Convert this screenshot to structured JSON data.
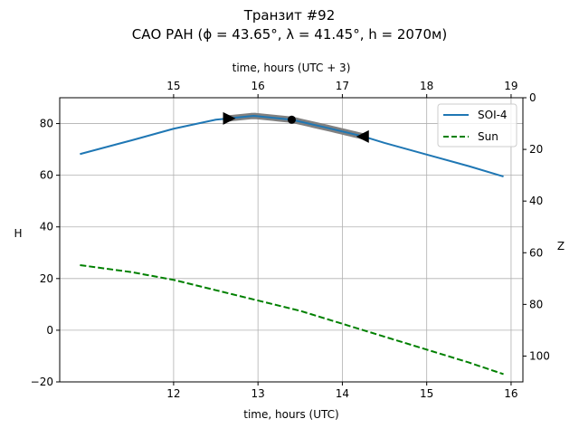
{
  "chart_data": {
    "type": "line",
    "title": "Транзит #92",
    "subtitle": "САО РАН (ϕ = 43.65°, λ = 41.45°, h = 2070м)",
    "xlabel": "time, hours (UTC)",
    "x2label": "time, hours (UTC + 3)",
    "ylabel": "H",
    "y2label": "Z",
    "xlim": [
      10.65,
      16.14
    ],
    "ylim": [
      -20,
      90
    ],
    "x2_offset": 3,
    "xticks": [
      "12",
      "13",
      "14",
      "15",
      "16"
    ],
    "x2ticks": [
      "15",
      "16",
      "17",
      "18",
      "19"
    ],
    "yticks": [
      "−20",
      "0",
      "20",
      "40",
      "60",
      "80"
    ],
    "y2ticks": [
      "0",
      "20",
      "40",
      "60",
      "80",
      "100"
    ],
    "grid": true,
    "legend_position": "top-right",
    "series": [
      {
        "name": "SOI-4",
        "color": "#1f77b4",
        "style": "solid",
        "x": [
          10.89,
          11.5,
          12.0,
          12.5,
          12.95,
          13.4,
          13.8,
          14.25,
          14.5,
          15.0,
          15.5,
          15.91
        ],
        "y": [
          68.2,
          73.5,
          78.0,
          81.5,
          83.0,
          81.5,
          78.5,
          75.0,
          72.5,
          68.0,
          63.5,
          59.5
        ]
      },
      {
        "name": "Sun",
        "color": "#008000",
        "style": "dashed",
        "x": [
          10.89,
          11.5,
          12.0,
          12.5,
          13.0,
          13.5,
          14.0,
          14.5,
          15.0,
          15.5,
          15.91
        ],
        "y": [
          25.2,
          22.5,
          19.5,
          15.5,
          11.5,
          7.5,
          2.5,
          -2.5,
          -7.5,
          -12.5,
          -17.0
        ]
      }
    ],
    "transit": {
      "start": 12.65,
      "mid": 13.4,
      "end": 14.25,
      "band_color": "#808080"
    }
  }
}
